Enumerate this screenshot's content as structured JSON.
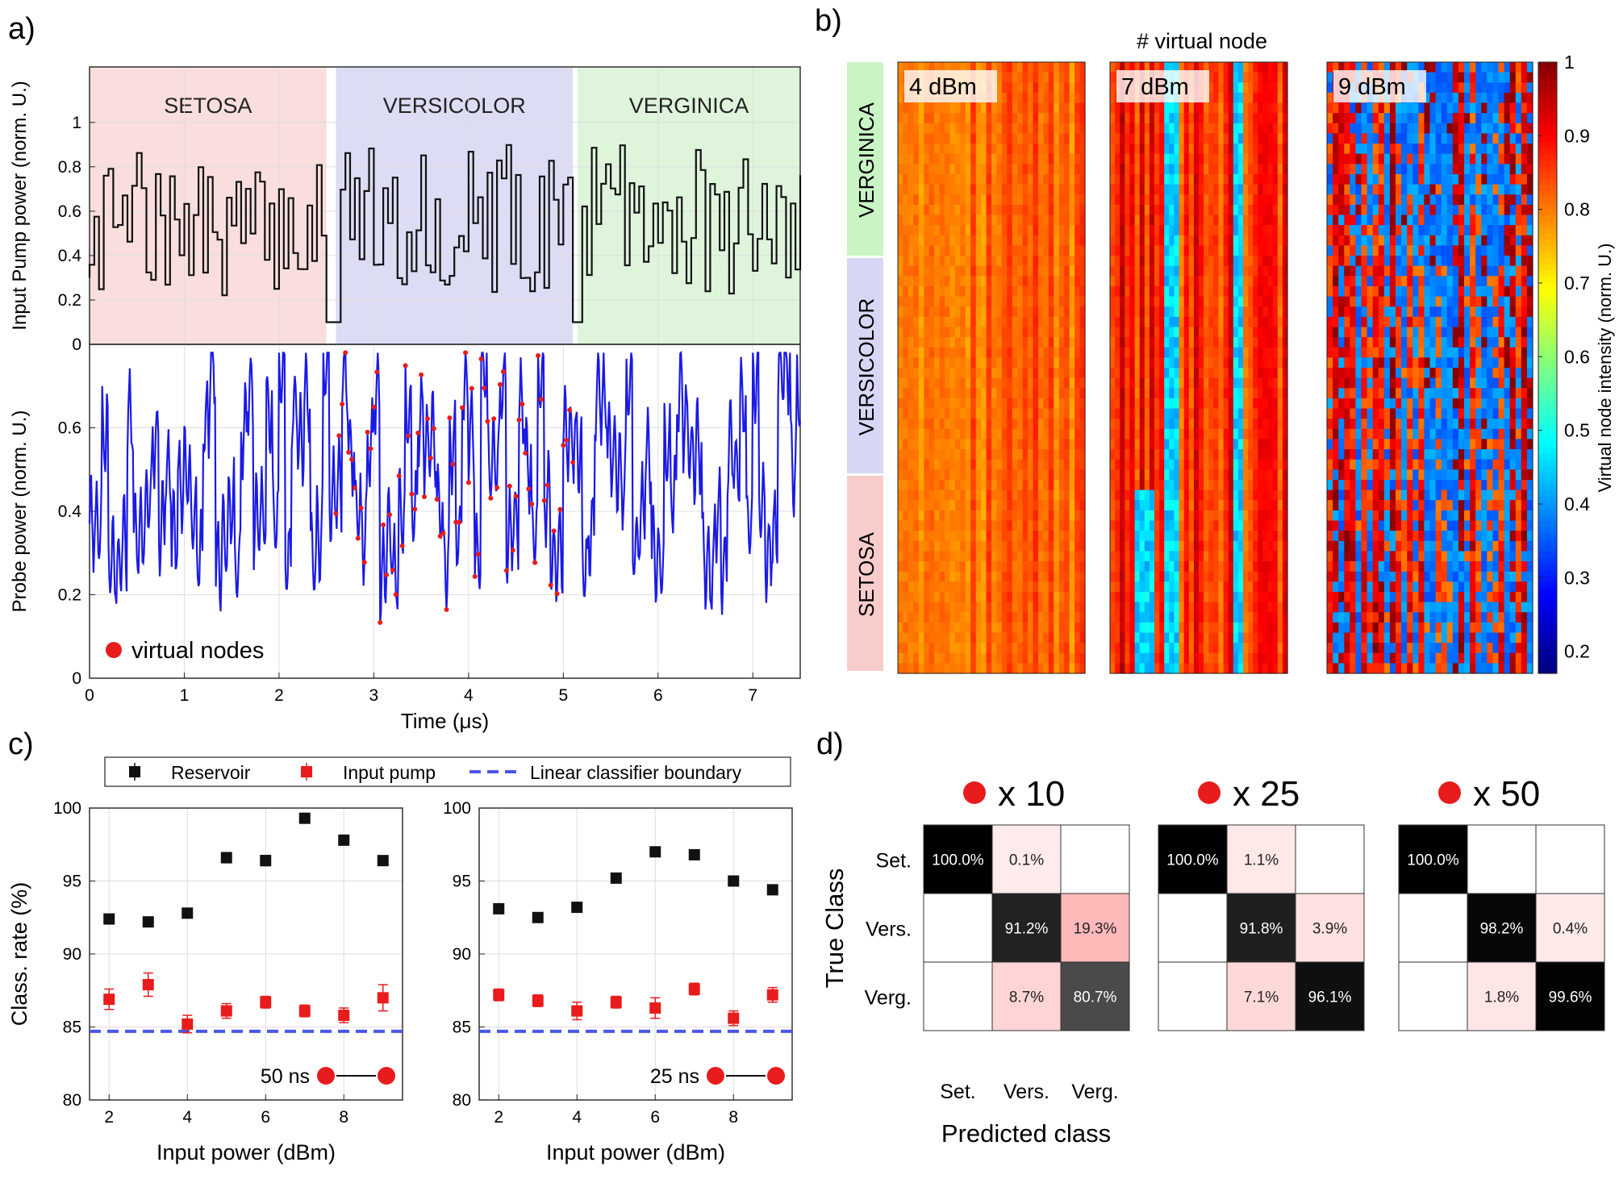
{
  "panels": {
    "a": "a)",
    "b": "b)",
    "c": "c)",
    "d": "d)"
  },
  "chart_data": [
    {
      "id": "a-top",
      "type": "line",
      "title": "",
      "xlabel": "Time (μs)",
      "ylabel": "Input Pump power (norm. U.)",
      "xlim": [
        0,
        7.5
      ],
      "ylim": [
        0,
        1.25
      ],
      "xticks": [
        0,
        1,
        2,
        3,
        4,
        5,
        6,
        7
      ],
      "yticks": [
        0,
        0.2,
        0.4,
        0.6,
        0.8,
        1
      ],
      "grid": true,
      "regions": [
        {
          "label": "SETOSA",
          "x0": 0,
          "x1": 2.5,
          "color": "#f9dedd"
        },
        {
          "label": "VERSICOLOR",
          "x0": 2.6,
          "x1": 5.1,
          "color": "#dcdcf5"
        },
        {
          "label": "VERGINICA",
          "x0": 5.15,
          "x1": 7.5,
          "color": "#def5dc"
        }
      ],
      "line_color": "#111111",
      "series_name": "Input pump power",
      "waveform": {
        "seed": 7,
        "segment_us": 0.05,
        "levels_min": 0.22,
        "levels_max": 0.8
      }
    },
    {
      "id": "a-bottom",
      "type": "line",
      "xlabel": "Time (μs)",
      "ylabel": "Probe power (norm. U.)",
      "xlim": [
        0,
        7.5
      ],
      "ylim": [
        0,
        0.8
      ],
      "xticks": [
        0,
        1,
        2,
        3,
        4,
        5,
        6,
        7
      ],
      "yticks": [
        0,
        0.2,
        0.4,
        0.6
      ],
      "grid": true,
      "line_color": "#1a1ae6",
      "legend": "virtual nodes",
      "marker_color": "#e81c1c",
      "virtual_nodes_range_us": [
        2.6,
        5.1
      ],
      "waveform": {
        "seed": 11,
        "segment_us": 0.05
      }
    },
    {
      "id": "b",
      "type": "heatmap",
      "xlabel": "# virtual node",
      "row_labels": [
        "VERGINICA",
        "VERSICOLOR",
        "SETOSA"
      ],
      "row_label_colors": [
        "#c9f5c4",
        "#d7d7f5",
        "#f9cccc"
      ],
      "maps": [
        {
          "label": "4 dBm",
          "nodes": 50,
          "samples": 150
        },
        {
          "label": "7 dBm",
          "nodes": 50,
          "samples": 150
        },
        {
          "label": "9 dBm",
          "nodes": 50,
          "samples": 150
        }
      ],
      "colorbar": {
        "label": "Virtual node intensity (norm. U.)",
        "range": [
          0.17,
          1
        ],
        "ticks": [
          0.2,
          0.3,
          0.4,
          0.5,
          0.6,
          0.7,
          0.8,
          0.9,
          1
        ]
      }
    },
    {
      "id": "c-left",
      "type": "scatter",
      "xlabel": "Input power (dBm)",
      "ylabel": "Class. rate (%)",
      "xlim": [
        1.5,
        9.5
      ],
      "ylim": [
        80,
        100
      ],
      "xticks": [
        2,
        4,
        6,
        8
      ],
      "yticks": [
        80,
        85,
        90,
        95,
        100
      ],
      "annotation": "50 ns",
      "x": [
        2,
        3,
        4,
        5,
        6,
        7,
        8,
        9
      ],
      "series": [
        {
          "name": "Reservoir",
          "color": "#111111",
          "values": [
            92.4,
            92.2,
            92.8,
            96.6,
            96.4,
            99.3,
            97.8,
            96.4
          ],
          "errors": [
            0.3,
            0.2,
            0.3,
            0.35,
            0.35,
            0.2,
            0.25,
            0.3
          ]
        },
        {
          "name": "Input pump",
          "color": "#e81c1c",
          "values": [
            86.9,
            87.9,
            85.2,
            86.1,
            86.7,
            86.1,
            85.8,
            87.0
          ],
          "errors": [
            0.7,
            0.8,
            0.6,
            0.5,
            0.4,
            0.4,
            0.5,
            0.9
          ]
        }
      ],
      "boundary": {
        "name": "Linear classifier boundary",
        "value": 84.7,
        "color": "#4a55e8"
      }
    },
    {
      "id": "c-right",
      "type": "scatter",
      "xlabel": "Input power (dBm)",
      "ylabel": "",
      "xlim": [
        1.5,
        9.5
      ],
      "ylim": [
        80,
        100
      ],
      "xticks": [
        2,
        4,
        6,
        8
      ],
      "yticks": [
        80,
        85,
        90,
        95,
        100
      ],
      "annotation": "25 ns",
      "x": [
        2,
        3,
        4,
        5,
        6,
        7,
        8,
        9
      ],
      "series": [
        {
          "name": "Reservoir",
          "color": "#111111",
          "values": [
            93.1,
            92.5,
            93.2,
            95.2,
            97.0,
            96.8,
            95.0,
            94.4
          ],
          "errors": [
            0.2,
            0.3,
            0.2,
            0.3,
            0.25,
            0.2,
            0.3,
            0.3
          ]
        },
        {
          "name": "Input pump",
          "color": "#e81c1c",
          "values": [
            87.2,
            86.8,
            86.1,
            86.7,
            86.3,
            87.6,
            85.6,
            87.2
          ],
          "errors": [
            0.4,
            0.4,
            0.6,
            0.4,
            0.7,
            0.4,
            0.5,
            0.5
          ]
        }
      ],
      "boundary": {
        "name": "Linear classifier boundary",
        "value": 84.7,
        "color": "#4a55e8"
      }
    },
    {
      "id": "d",
      "type": "table",
      "ylabel": "True Class",
      "xlabel": "Predicted class",
      "row_labels": [
        "Set.",
        "Vers.",
        "Verg."
      ],
      "col_labels": [
        "Set.",
        "Vers.",
        "Verg."
      ],
      "matrices": [
        {
          "title": "x 10",
          "values": [
            [
              100.0,
              0.1,
              null
            ],
            [
              null,
              91.2,
              19.3
            ],
            [
              null,
              8.7,
              80.7
            ]
          ],
          "cells": [
            [
              "100.0%",
              "0.1%",
              ""
            ],
            [
              "",
              "91.2%",
              "19.3%"
            ],
            [
              "",
              "8.7%",
              "80.7%"
            ]
          ]
        },
        {
          "title": "x 25",
          "values": [
            [
              100.0,
              1.1,
              null
            ],
            [
              null,
              91.8,
              3.9
            ],
            [
              null,
              7.1,
              96.1
            ]
          ],
          "cells": [
            [
              "100.0%",
              "1.1%",
              ""
            ],
            [
              "",
              "91.8%",
              "3.9%"
            ],
            [
              "",
              "7.1%",
              "96.1%"
            ]
          ]
        },
        {
          "title": "x 50",
          "values": [
            [
              100.0,
              null,
              null
            ],
            [
              null,
              98.2,
              0.4
            ],
            [
              null,
              1.8,
              99.6
            ]
          ],
          "cells": [
            [
              "100.0%",
              "",
              ""
            ],
            [
              "",
              "98.2%",
              "0.4%"
            ],
            [
              "",
              "1.8%",
              "99.6%"
            ]
          ]
        }
      ]
    }
  ]
}
